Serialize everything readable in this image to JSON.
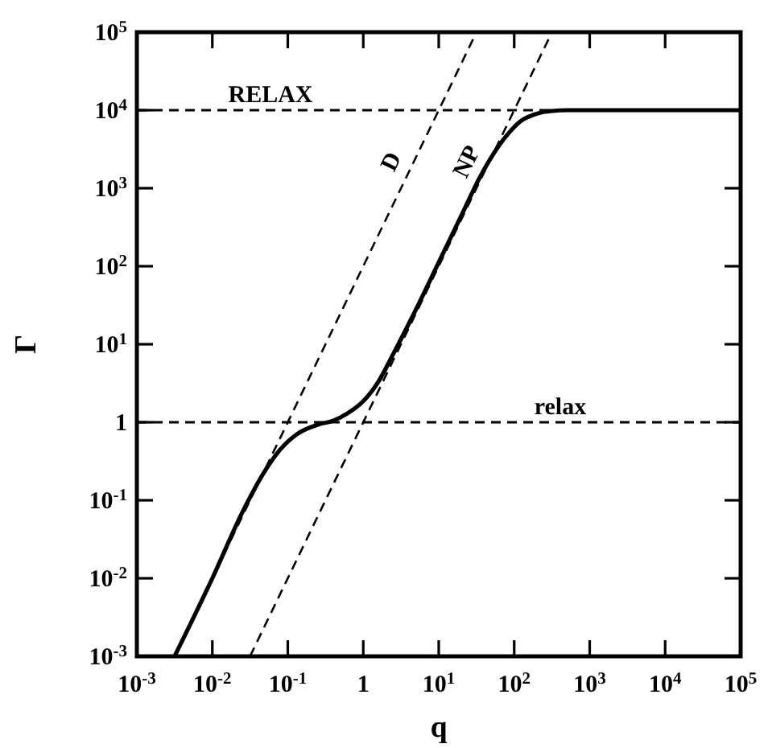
{
  "chart_data": {
    "type": "line",
    "xlabel": "q",
    "ylabel": "Γ",
    "log": "xy",
    "grid": false,
    "marker": "none",
    "xlim": [
      0.001,
      100000
    ],
    "ylim": [
      0.001,
      100000
    ],
    "xticks": [
      {
        "value": 0.001,
        "label": "10$^{-3}$"
      },
      {
        "value": 0.01,
        "label": "10$^{-2}$"
      },
      {
        "value": 0.1,
        "label": "10$^{-1}$"
      },
      1,
      {
        "value": 10,
        "label": "10$^{1}$"
      },
      {
        "value": 100,
        "label": "10$^{2}$"
      },
      {
        "value": 1000,
        "label": "10$^{3}$"
      },
      {
        "value": 10000,
        "label": "10$^{4}$"
      },
      {
        "value": 100000,
        "label": "10$^{5}$"
      }
    ],
    "yticks": [
      {
        "value": 0.001,
        "label": "10$^{-3}$"
      },
      {
        "value": 0.01,
        "label": "10$^{-2}$"
      },
      {
        "value": 0.1,
        "label": "10$^{-1}$"
      },
      1,
      {
        "value": 10,
        "label": "10$^{1}$"
      },
      {
        "value": 100,
        "label": "10$^{2}$"
      },
      {
        "value": 1000,
        "label": "10$^{3}$"
      },
      {
        "value": 10000,
        "label": "10$^{4}$"
      },
      {
        "value": 100000,
        "label": "10$^{5}$"
      }
    ],
    "ref_lines": [
      {
        "axis": "y",
        "value": 10000,
        "label": "RELAX",
        "line_style": "dashed"
      },
      {
        "axis": "y",
        "value": 1,
        "label": "relax",
        "line_style": "dashed"
      }
    ],
    "series": [
      {
        "color": "#000000",
        "line_style": "solid",
        "x": [
          0.00316,
          0.01,
          0.0251,
          0.0501,
          0.0794,
          0.138,
          0.251,
          0.398,
          0.631,
          1,
          1.585,
          2.512,
          5.012,
          10,
          19.95,
          35.48,
          63.1,
          85.1,
          125.9,
          158.5,
          223.9,
          316.2,
          501.2,
          100000
        ],
        "values": [
          0.001,
          0.01,
          0.0708,
          0.24,
          0.447,
          0.724,
          0.933,
          1.047,
          1.318,
          1.862,
          3.311,
          7.586,
          28.18,
          112.2,
          446.7,
          1413,
          3548,
          5129,
          7413,
          8318,
          9333,
          9772,
          10000,
          10000
        ]
      },
      {
        "name": "D",
        "color": "#000000",
        "line_style": "dashed",
        "x": [
          0.00316,
          31.62
        ],
        "values": [
          0.001,
          100000
        ]
      },
      {
        "name": "NP",
        "color": "#000000",
        "line_style": "dashed",
        "x": [
          0.0316,
          316.2
        ],
        "values": [
          0.001,
          100000
        ]
      }
    ]
  }
}
